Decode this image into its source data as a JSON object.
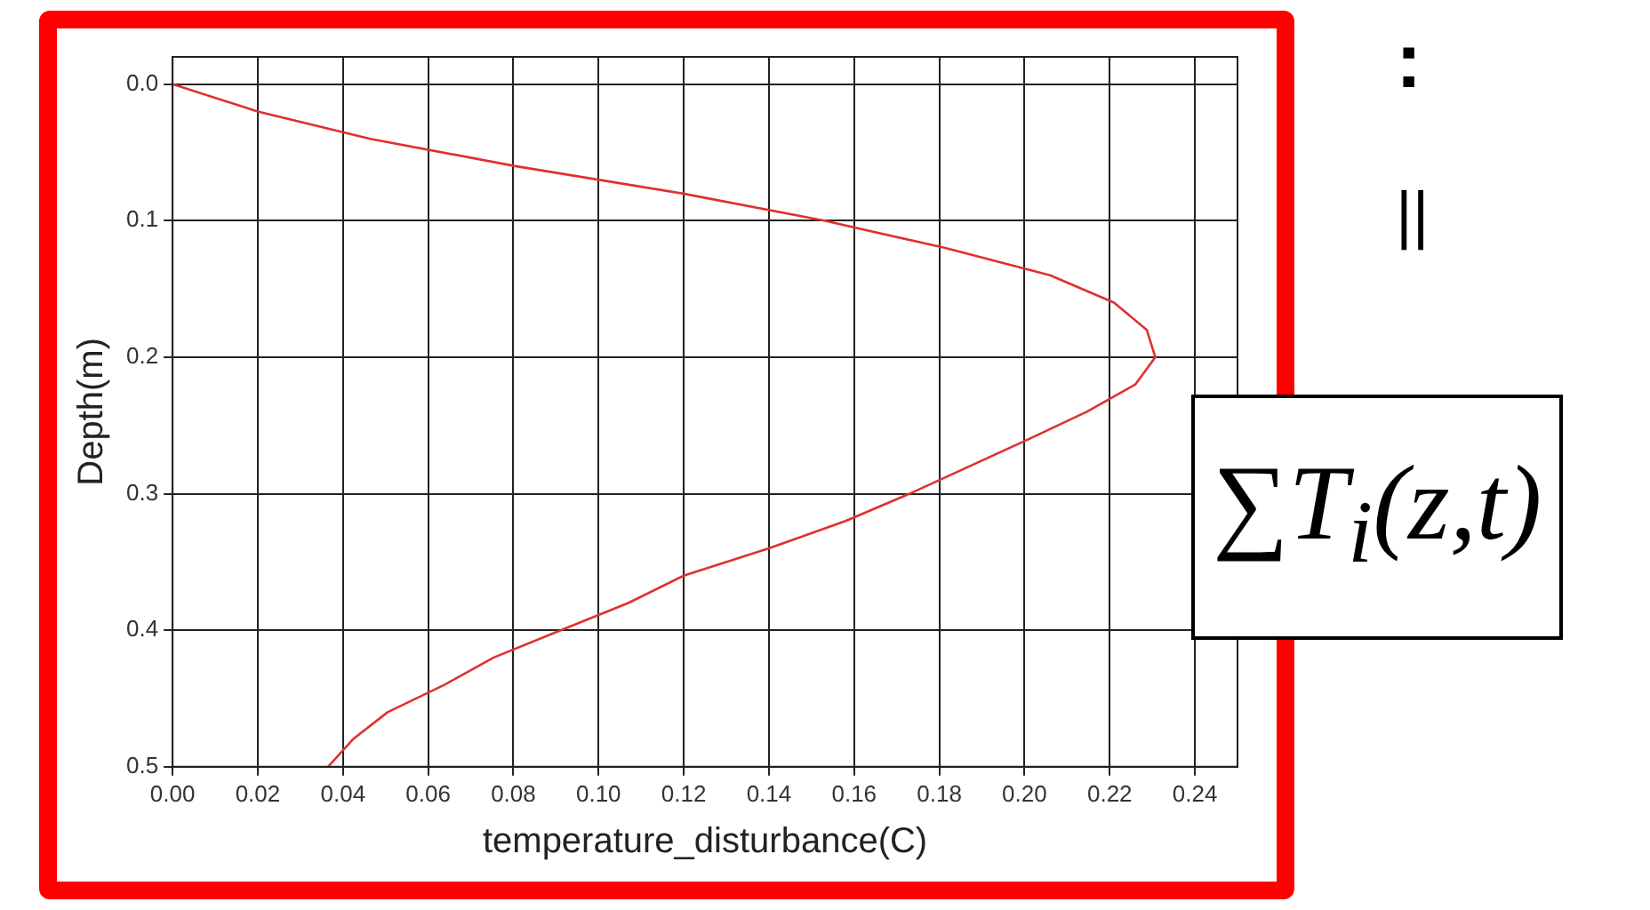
{
  "chart_data": {
    "type": "line",
    "xlabel": "temperature_disturbance(C)",
    "ylabel": "Depth(m)",
    "xlim": [
      0,
      0.25
    ],
    "ylim": [
      0.5,
      -0.02
    ],
    "xticks": [
      {
        "value": 0,
        "label": "0.00"
      },
      {
        "value": 0.02,
        "label": "0.02"
      },
      {
        "value": 0.04,
        "label": "0.04"
      },
      {
        "value": 0.06,
        "label": "0.06"
      },
      {
        "value": 0.08,
        "label": "0.08"
      },
      {
        "value": 0.1,
        "label": "0.10"
      },
      {
        "value": 0.12,
        "label": "0.12"
      },
      {
        "value": 0.14,
        "label": "0.14"
      },
      {
        "value": 0.16,
        "label": "0.16"
      },
      {
        "value": 0.18,
        "label": "0.18"
      },
      {
        "value": 0.2,
        "label": "0.20"
      },
      {
        "value": 0.22,
        "label": "0.22"
      },
      {
        "value": 0.24,
        "label": "0.24"
      }
    ],
    "yticks": [
      {
        "value": 0,
        "label": "0.0"
      },
      {
        "value": 0.1,
        "label": "0.1"
      },
      {
        "value": 0.2,
        "label": "0.2"
      },
      {
        "value": 0.3,
        "label": "0.3"
      },
      {
        "value": 0.4,
        "label": "0.4"
      },
      {
        "value": 0.5,
        "label": "0.5"
      }
    ],
    "grid": true,
    "marker": "none",
    "line_style": "solid",
    "series": [
      {
        "color": "#e03030",
        "x": [
          0,
          0.02,
          0.0464,
          0.0804,
          0.1196,
          0.153,
          0.1814,
          0.206,
          0.221,
          0.2287,
          0.2307,
          0.226,
          0.2146,
          0.201,
          0.187,
          0.173,
          0.158,
          0.14,
          0.12,
          0.107,
          0.0911,
          0.0754,
          0.0638,
          0.0505,
          0.0423,
          0.0365
        ],
        "values": [
          0,
          0.02,
          0.04,
          0.06,
          0.08,
          0.1,
          0.12,
          0.14,
          0.16,
          0.18,
          0.2,
          0.22,
          0.24,
          0.26,
          0.28,
          0.3,
          0.32,
          0.34,
          0.36,
          0.38,
          0.4,
          0.42,
          0.44,
          0.46,
          0.48,
          0.5
        ]
      }
    ],
    "annotations": [
      ":",
      "||",
      "∑T$_{i}$(z,t)"
    ]
  }
}
